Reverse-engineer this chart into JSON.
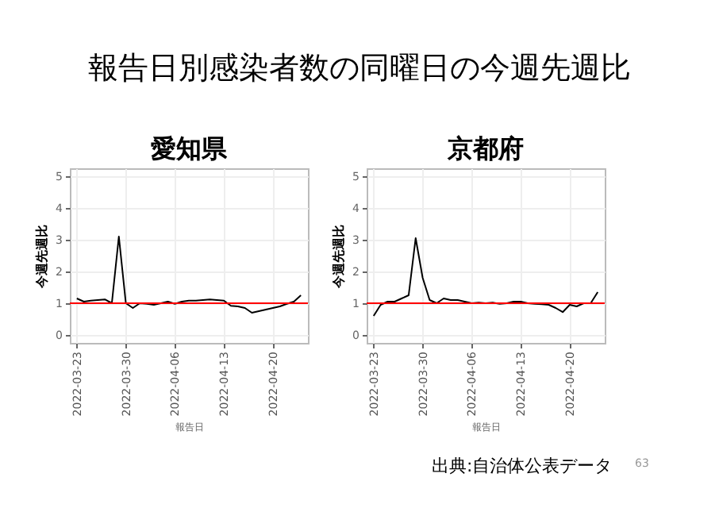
{
  "chart_data": [
    {
      "type": "line",
      "title": "愛知県",
      "xlabel": "報告日",
      "ylabel": "今週先週比",
      "annotations": [
        "報告日別感染者数の同曜日の今週先週比"
      ],
      "x": [
        "2022-03-23",
        "2022-03-24",
        "2022-03-25",
        "2022-03-26",
        "2022-03-27",
        "2022-03-28",
        "2022-03-29",
        "2022-03-30",
        "2022-03-31",
        "2022-04-01",
        "2022-04-02",
        "2022-04-03",
        "2022-04-04",
        "2022-04-05",
        "2022-04-06",
        "2022-04-07",
        "2022-04-08",
        "2022-04-09",
        "2022-04-10",
        "2022-04-11",
        "2022-04-12",
        "2022-04-13",
        "2022-04-14",
        "2022-04-15",
        "2022-04-16",
        "2022-04-17",
        "2022-04-18",
        "2022-04-19",
        "2022-04-20",
        "2022-04-21",
        "2022-04-22",
        "2022-04-23",
        "2022-04-24"
      ],
      "series": [
        {
          "color": "#000000",
          "values": [
            1.15,
            1.05,
            1.08,
            1.1,
            1.12,
            1.0,
            3.1,
            1.0,
            0.85,
            1.0,
            0.98,
            0.95,
            1.0,
            1.05,
            0.98,
            1.05,
            1.08,
            1.08,
            1.1,
            1.12,
            1.1,
            1.08,
            0.92,
            0.9,
            0.85,
            0.7,
            0.75,
            0.8,
            0.85,
            0.9,
            0.98,
            1.05,
            1.25
          ]
        }
      ],
      "xlim": [
        "2022-03-22",
        "2022-04-25"
      ],
      "xticks": [
        "2022-03-23",
        "2022-03-30",
        "2022-04-06",
        "2022-04-13",
        "2022-04-20"
      ],
      "ylim": [
        -0.25,
        5.25
      ],
      "yticks": [
        0,
        1,
        2,
        3,
        4,
        5
      ],
      "grid": true,
      "ref_lines": [
        {
          "axis": "y",
          "value": 1,
          "color": "#ff0000"
        }
      ]
    },
    {
      "type": "line",
      "title": "京都府",
      "xlabel": "報告日",
      "ylabel": "今週先週比",
      "annotations": [
        "出典:自治体公表データ",
        "63"
      ],
      "x": [
        "2022-03-23",
        "2022-03-24",
        "2022-03-25",
        "2022-03-26",
        "2022-03-27",
        "2022-03-28",
        "2022-03-29",
        "2022-03-30",
        "2022-03-31",
        "2022-04-01",
        "2022-04-02",
        "2022-04-03",
        "2022-04-04",
        "2022-04-05",
        "2022-04-06",
        "2022-04-07",
        "2022-04-08",
        "2022-04-09",
        "2022-04-10",
        "2022-04-11",
        "2022-04-12",
        "2022-04-13",
        "2022-04-14",
        "2022-04-15",
        "2022-04-16",
        "2022-04-17",
        "2022-04-18",
        "2022-04-19",
        "2022-04-20",
        "2022-04-21",
        "2022-04-22",
        "2022-04-23",
        "2022-04-24"
      ],
      "series": [
        {
          "color": "#000000",
          "values": [
            0.6,
            0.95,
            1.05,
            1.05,
            1.15,
            1.25,
            3.05,
            1.8,
            1.1,
            1.0,
            1.15,
            1.1,
            1.1,
            1.05,
            1.0,
            1.02,
            1.0,
            1.02,
            0.98,
            1.0,
            1.05,
            1.05,
            1.0,
            0.98,
            0.97,
            0.95,
            0.85,
            0.72,
            0.95,
            0.9,
            1.0,
            1.0,
            1.35
          ]
        }
      ],
      "xlim": [
        "2022-03-22",
        "2022-04-25"
      ],
      "xticks": [
        "2022-03-23",
        "2022-03-30",
        "2022-04-06",
        "2022-04-13",
        "2022-04-20"
      ],
      "ylim": [
        -0.25,
        5.25
      ],
      "yticks": [
        0,
        1,
        2,
        3,
        4,
        5
      ],
      "grid": true,
      "ref_lines": [
        {
          "axis": "y",
          "value": 1,
          "color": "#ff0000"
        }
      ]
    }
  ]
}
